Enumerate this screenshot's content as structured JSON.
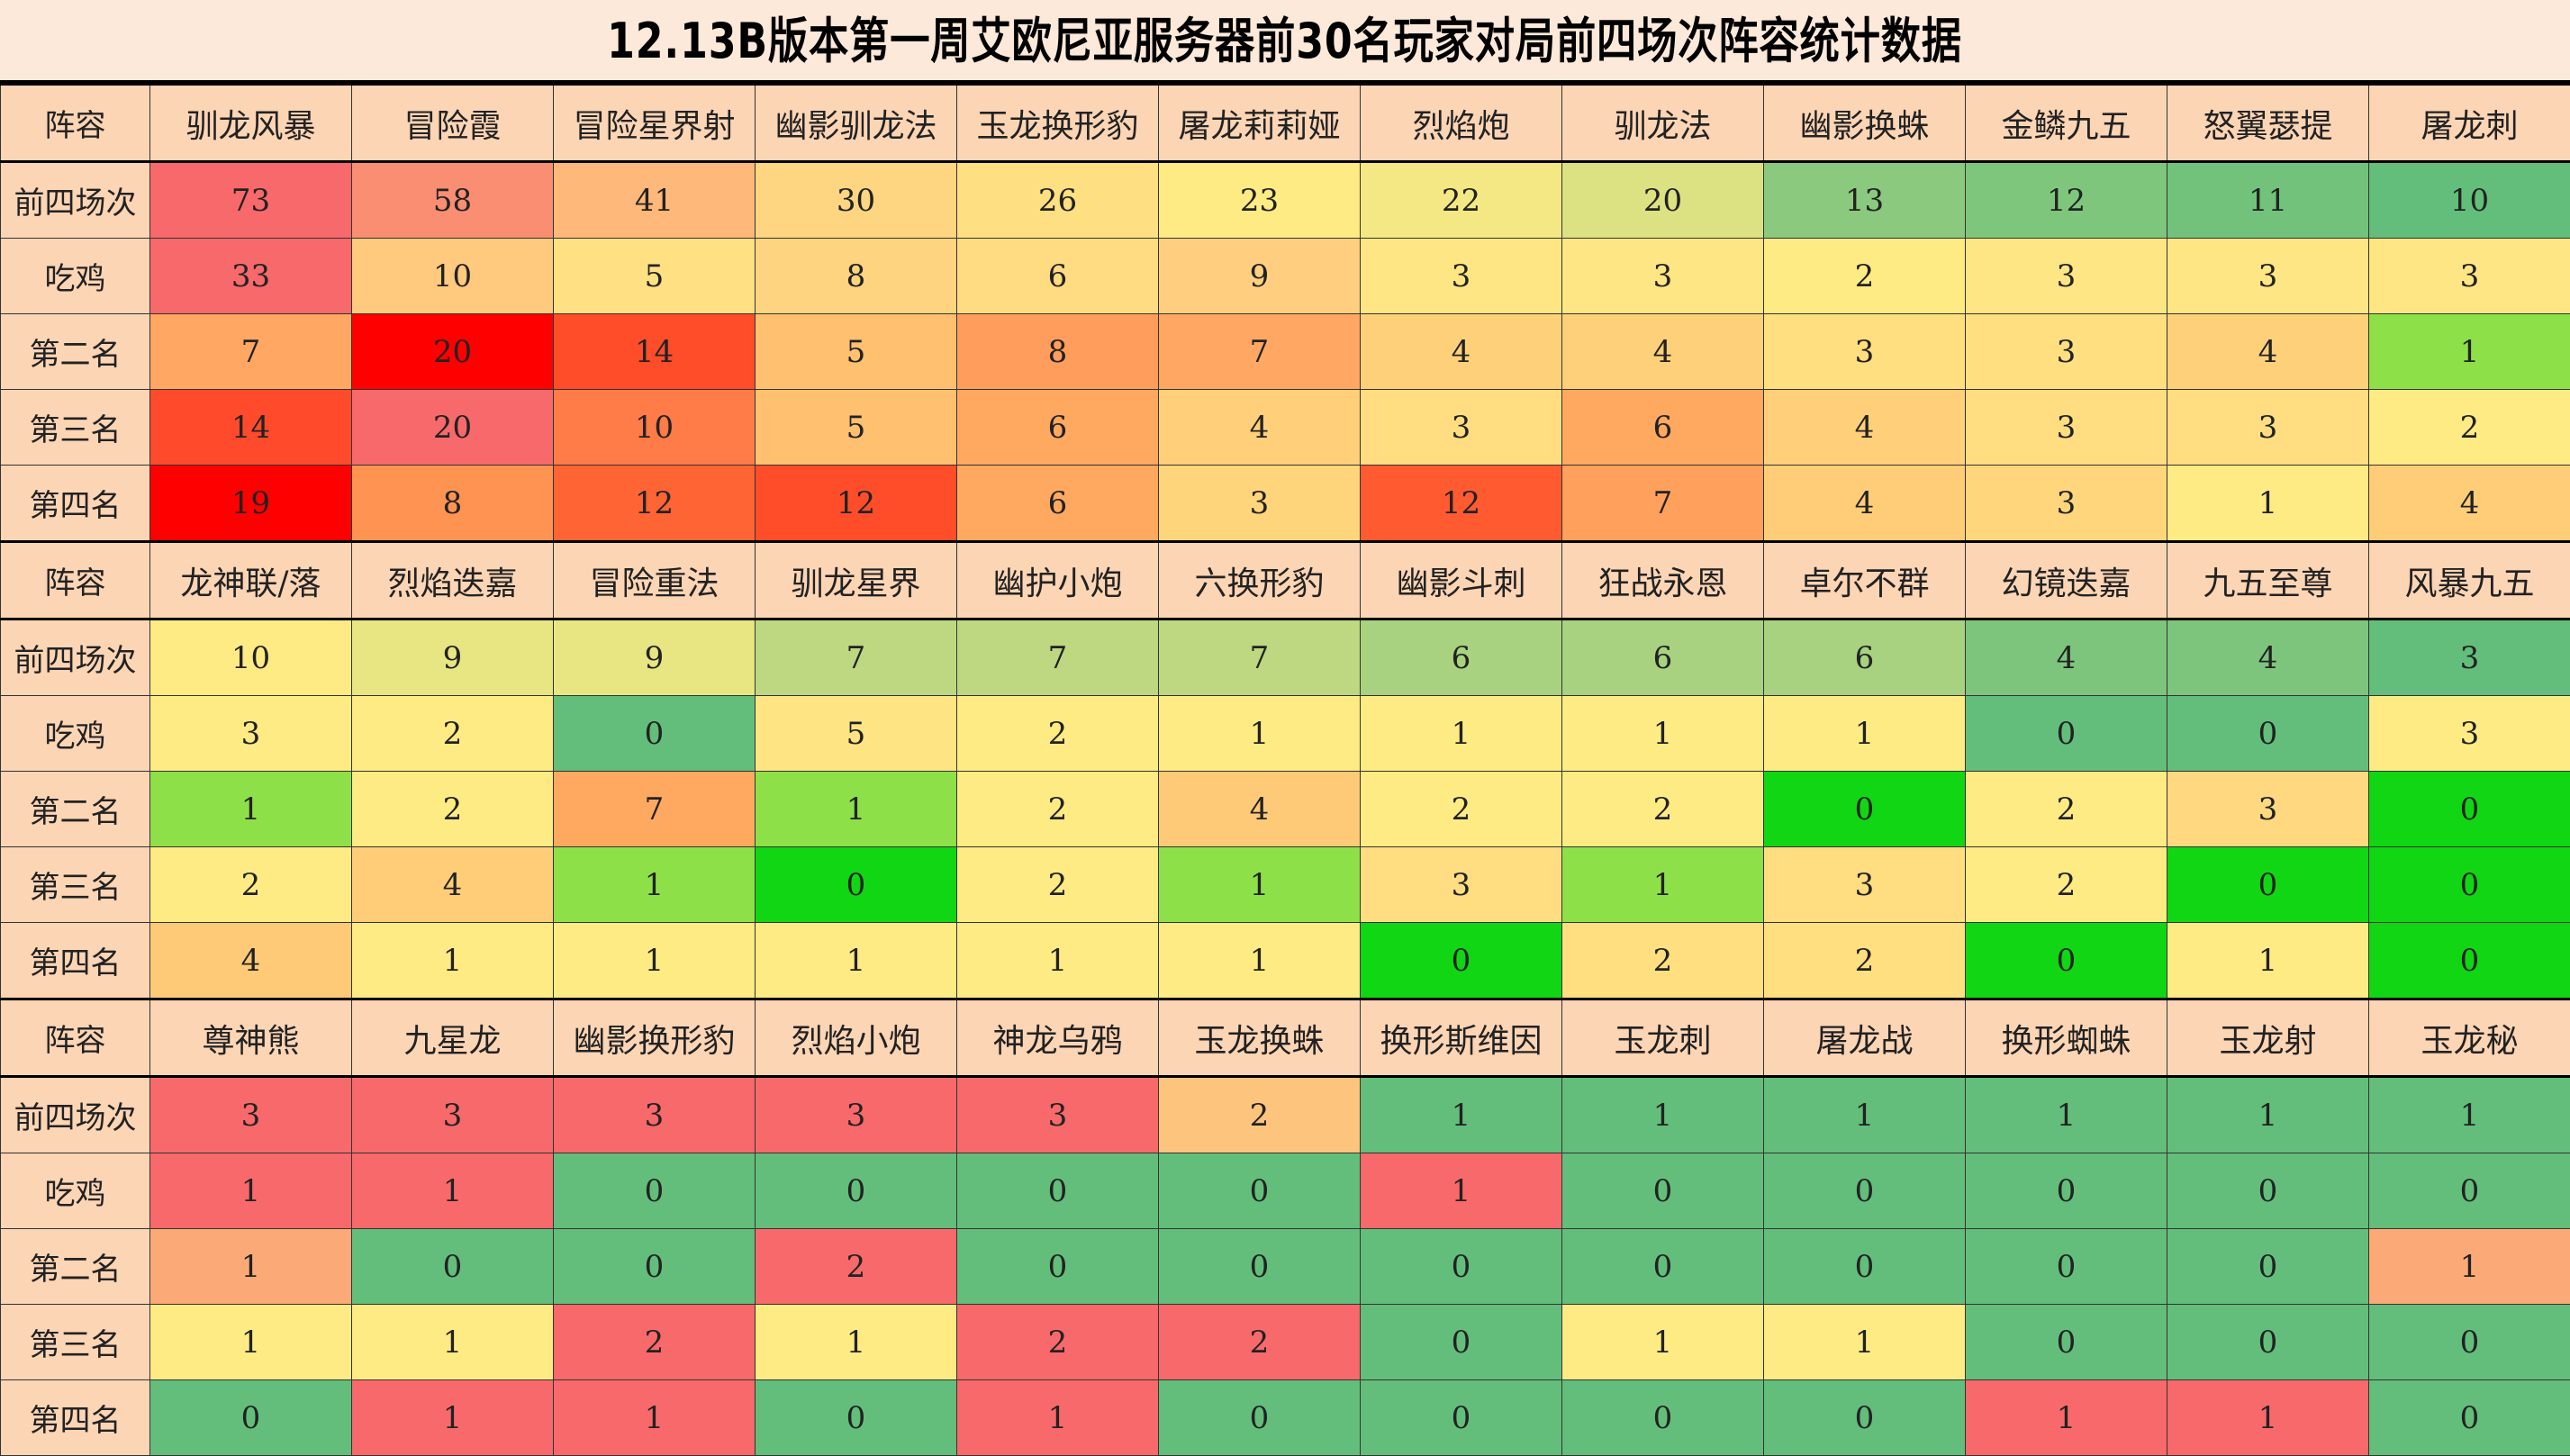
{
  "title": "12.13B版本第一周艾欧尼亚服务器前30名玩家对局前四场次阵容统计数据",
  "colors": {
    "header_bg": "#FCD5B5",
    "title_bg": "#FDE9D9"
  },
  "blocks": [
    {
      "header_label": "阵容",
      "comps": [
        "驯龙风暴",
        "冒险霞",
        "冒险星界射",
        "幽影驯龙法",
        "玉龙换形豹",
        "屠龙莉莉娅",
        "烈焰炮",
        "驯龙法",
        "幽影换蛛",
        "金鳞九五",
        "怒翼瑟提",
        "屠龙刺"
      ],
      "rows": [
        {
          "label": "前四场次",
          "values": [
            73,
            58,
            41,
            30,
            26,
            23,
            22,
            20,
            13,
            12,
            11,
            10
          ],
          "colors": [
            "#F8696B",
            "#FA8E72",
            "#FDB87A",
            "#FED580",
            "#FEDF81",
            "#FFEB84",
            "#F4E884",
            "#DCE182",
            "#8BC97E",
            "#7FC67D",
            "#72C27B",
            "#63BE7B"
          ]
        },
        {
          "label": "吃鸡",
          "values": [
            33,
            10,
            5,
            8,
            6,
            9,
            3,
            3,
            2,
            3,
            3,
            3
          ],
          "colors": [
            "#F8696B",
            "#FFC97E",
            "#FFE083",
            "#FFD480",
            "#FFDB81",
            "#FFCF7F",
            "#FFE684",
            "#FFE684",
            "#FFEB84",
            "#FFE684",
            "#FFE684",
            "#FFE684"
          ]
        },
        {
          "label": "第二名",
          "values": [
            7,
            20,
            14,
            5,
            8,
            7,
            4,
            4,
            3,
            3,
            4,
            1
          ],
          "colors": [
            "#FFA763",
            "#FF0000",
            "#FF4D2A",
            "#FFC070",
            "#FF9E5C",
            "#FFA763",
            "#FFD07A",
            "#FFD07A",
            "#FFDF80",
            "#FFDF80",
            "#FFD07A",
            "#8EE048"
          ]
        },
        {
          "label": "第三名",
          "values": [
            14,
            20,
            10,
            5,
            6,
            4,
            3,
            6,
            4,
            3,
            3,
            2
          ],
          "colors": [
            "#FF4B2B",
            "#F8696B",
            "#FF7B47",
            "#FFC070",
            "#FFA860",
            "#FFCF79",
            "#FFDD80",
            "#FFA860",
            "#FFCF79",
            "#FFDD80",
            "#FFDD80",
            "#FFEB84"
          ]
        },
        {
          "label": "第四名",
          "values": [
            19,
            8,
            12,
            12,
            6,
            3,
            12,
            7,
            4,
            3,
            1,
            4
          ],
          "colors": [
            "#FF0000",
            "#FF9452",
            "#FF6434",
            "#FF4D2A",
            "#FFA960",
            "#FFD57C",
            "#FF5A30",
            "#FFA05C",
            "#FFCD78",
            "#FFD67C",
            "#FFEB84",
            "#FFCD78"
          ]
        }
      ]
    },
    {
      "header_label": "阵容",
      "comps": [
        "龙神联/落",
        "烈焰迭嘉",
        "冒险重法",
        "驯龙星界",
        "幽护小炮",
        "六换形豹",
        "幽影斗刺",
        "狂战永恩",
        "卓尔不群",
        "幻镜迭嘉",
        "九五至尊",
        "风暴九五"
      ],
      "rows": [
        {
          "label": "前四场次",
          "values": [
            10,
            9,
            9,
            7,
            7,
            7,
            6,
            6,
            6,
            4,
            4,
            3
          ],
          "colors": [
            "#FFEB84",
            "#E8E583",
            "#E8E583",
            "#BDD881",
            "#BDD881",
            "#BDD881",
            "#A8D27F",
            "#A8D27F",
            "#A8D27F",
            "#7DC57D",
            "#7DC57D",
            "#63BE7B"
          ]
        },
        {
          "label": "吃鸡",
          "values": [
            3,
            2,
            0,
            5,
            2,
            1,
            1,
            1,
            1,
            0,
            0,
            3
          ],
          "colors": [
            "#FFEB84",
            "#FFEB84",
            "#63BE7B",
            "#FFE484",
            "#FFEB84",
            "#FFEB84",
            "#FFEB84",
            "#FFEB84",
            "#FFEB84",
            "#63BE7B",
            "#63BE7B",
            "#FFEB84"
          ]
        },
        {
          "label": "第二名",
          "values": [
            1,
            2,
            7,
            1,
            2,
            4,
            2,
            2,
            0,
            2,
            3,
            0
          ],
          "colors": [
            "#8EE048",
            "#FFEB84",
            "#FFA860",
            "#8EE048",
            "#FFEB84",
            "#FFCA77",
            "#FFEB84",
            "#FFEB84",
            "#11D613",
            "#FFEB84",
            "#FFD880",
            "#11D613"
          ]
        },
        {
          "label": "第三名",
          "values": [
            2,
            4,
            1,
            0,
            2,
            1,
            3,
            1,
            3,
            2,
            0,
            0
          ],
          "colors": [
            "#FFEB84",
            "#FFCD78",
            "#8EE048",
            "#11D613",
            "#FFEB84",
            "#8EE048",
            "#FFDD80",
            "#8EE048",
            "#FFDD80",
            "#FFEB84",
            "#11D613",
            "#11D613"
          ]
        },
        {
          "label": "第四名",
          "values": [
            4,
            1,
            1,
            1,
            1,
            1,
            0,
            2,
            2,
            0,
            1,
            0
          ],
          "colors": [
            "#FFCA77",
            "#FFEB84",
            "#FFEB84",
            "#FFEB84",
            "#FFEB84",
            "#FFEB84",
            "#11D613",
            "#FFDF80",
            "#FFDF80",
            "#11D613",
            "#FFEB84",
            "#11D613"
          ]
        }
      ]
    },
    {
      "header_label": "阵容",
      "comps": [
        "尊神熊",
        "九星龙",
        "幽影换形豹",
        "烈焰小炮",
        "神龙乌鸦",
        "玉龙换蛛",
        "换形斯维因",
        "玉龙刺",
        "屠龙战",
        "换形蜘蛛",
        "玉龙射",
        "玉龙秘"
      ],
      "rows": [
        {
          "label": "前四场次",
          "values": [
            3,
            3,
            3,
            3,
            3,
            2,
            1,
            1,
            1,
            1,
            1,
            1
          ],
          "colors": [
            "#F8696B",
            "#F8696B",
            "#F8696B",
            "#F8696B",
            "#F8696B",
            "#FDC47D",
            "#63BE7B",
            "#63BE7B",
            "#63BE7B",
            "#63BE7B",
            "#63BE7B",
            "#63BE7B"
          ]
        },
        {
          "label": "吃鸡",
          "values": [
            1,
            1,
            0,
            0,
            0,
            0,
            1,
            0,
            0,
            0,
            0,
            0
          ],
          "colors": [
            "#F8696B",
            "#F8696B",
            "#63BE7B",
            "#63BE7B",
            "#63BE7B",
            "#63BE7B",
            "#F8696B",
            "#63BE7B",
            "#63BE7B",
            "#63BE7B",
            "#63BE7B",
            "#63BE7B"
          ]
        },
        {
          "label": "第二名",
          "values": [
            1,
            0,
            0,
            2,
            0,
            0,
            0,
            0,
            0,
            0,
            0,
            1
          ],
          "colors": [
            "#FBAA77",
            "#63BE7B",
            "#63BE7B",
            "#F8696B",
            "#63BE7B",
            "#63BE7B",
            "#63BE7B",
            "#63BE7B",
            "#63BE7B",
            "#63BE7B",
            "#63BE7B",
            "#FBAA77"
          ]
        },
        {
          "label": "第三名",
          "values": [
            1,
            1,
            2,
            1,
            2,
            2,
            0,
            1,
            1,
            0,
            0,
            0
          ],
          "colors": [
            "#FFEB84",
            "#FFEB84",
            "#F8696B",
            "#FFEB84",
            "#F8696B",
            "#F8696B",
            "#63BE7B",
            "#FFEB84",
            "#FFEB84",
            "#63BE7B",
            "#63BE7B",
            "#63BE7B"
          ]
        },
        {
          "label": "第四名",
          "values": [
            0,
            1,
            1,
            0,
            1,
            0,
            0,
            0,
            0,
            1,
            1,
            0
          ],
          "colors": [
            "#63BE7B",
            "#F8696B",
            "#F8696B",
            "#63BE7B",
            "#F8696B",
            "#63BE7B",
            "#63BE7B",
            "#63BE7B",
            "#63BE7B",
            "#F8696B",
            "#F8696B",
            "#63BE7B"
          ]
        }
      ]
    }
  ]
}
